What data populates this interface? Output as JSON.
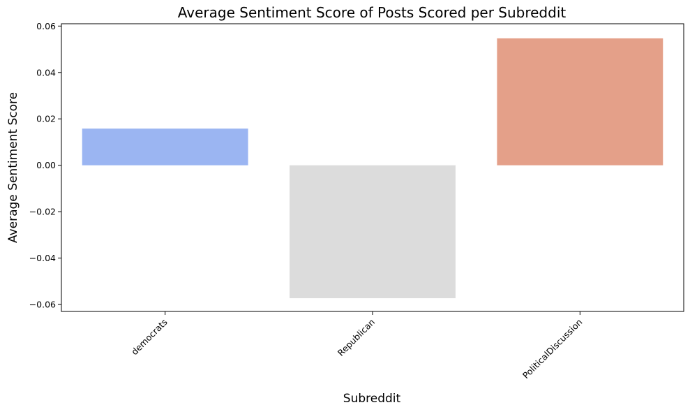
{
  "chart_data": {
    "type": "bar",
    "title": "Average Sentiment Score of Posts Scored per Subreddit",
    "xlabel": "Subreddit",
    "ylabel": "Average Sentiment Score",
    "categories": [
      "democrats",
      "Republican",
      "PoliticalDiscussion"
    ],
    "values": [
      0.0158,
      -0.0573,
      0.0547
    ],
    "colors": [
      "#9bb5f2",
      "#dcdcdc",
      "#e4a089"
    ],
    "ylim": [
      -0.063,
      0.061
    ],
    "yticks": [
      -0.06,
      -0.04,
      -0.02,
      0.0,
      0.02,
      0.04,
      0.06
    ],
    "ytick_labels": [
      "−0.06",
      "−0.04",
      "−0.02",
      "0.00",
      "0.02",
      "0.04",
      "0.06"
    ],
    "grid": false,
    "xtick_rotation": 45
  }
}
